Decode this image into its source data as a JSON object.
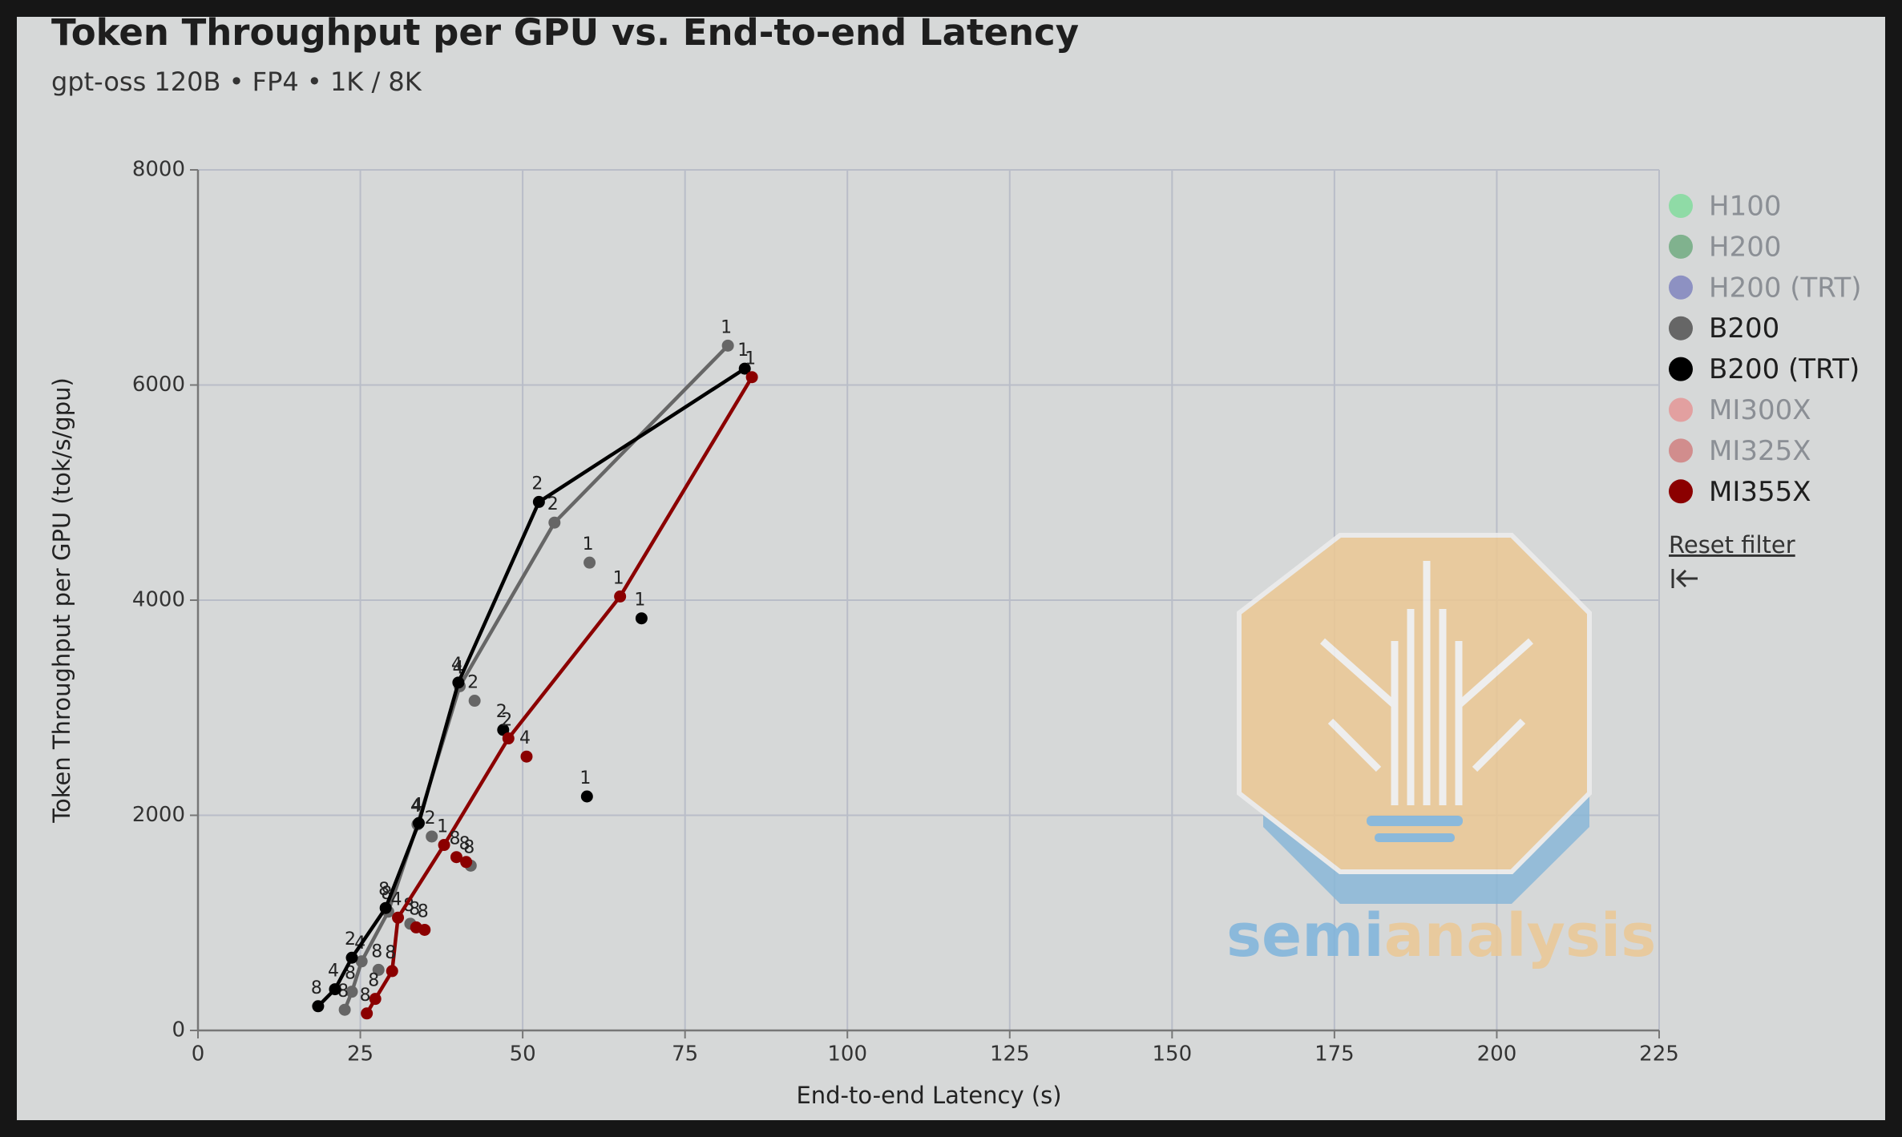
{
  "chart_data": {
    "type": "scatter",
    "title": "Token Throughput per GPU vs. End-to-end Latency",
    "subtitle": "gpt-oss 120B • FP4 • 1K / 8K",
    "x_label": "End-to-end Latency (s)",
    "y_label": "Token Throughput per GPU (tok/s/gpu)",
    "xlim": [
      0,
      225
    ],
    "xticks": [
      0,
      25,
      50,
      75,
      100,
      125,
      150,
      175,
      200,
      225
    ],
    "ylim": [
      0,
      8000
    ],
    "yticks": [
      0,
      2000,
      4000,
      6000,
      8000
    ],
    "grid": true,
    "legend": "right",
    "reset_label": "Reset filter",
    "watermark": {
      "part1": "semi",
      "part2": "analysis"
    },
    "series": [
      {
        "name": "H100",
        "color": "#7ddc9a",
        "visible": false,
        "x": [],
        "values": [],
        "point_labels": [],
        "frontier": []
      },
      {
        "name": "H200",
        "color": "#6aa97c",
        "visible": false,
        "x": [],
        "values": [],
        "point_labels": [],
        "frontier": []
      },
      {
        "name": "H200 (TRT)",
        "color": "#7b80bd",
        "visible": false,
        "x": [],
        "values": [],
        "point_labels": [],
        "frontier": []
      },
      {
        "name": "B200",
        "color": "#666666",
        "visible": true,
        "x": [
          81.6,
          54.9,
          60.3,
          40.3,
          42.6,
          33.8,
          36.0,
          42.0,
          29.3,
          32.7,
          25.2,
          27.8,
          23.7,
          22.6
        ],
        "values": [
          6366,
          4721,
          4349,
          3200,
          3065,
          1915,
          1803,
          1532,
          1104,
          992,
          642,
          563,
          360,
          192
        ],
        "point_labels": [
          "1",
          "2",
          "1",
          "4",
          "2",
          "4",
          "2",
          "8",
          "8",
          "8",
          "4",
          "8",
          "8",
          "8"
        ],
        "frontier": [
          0,
          1,
          3,
          5,
          8,
          10,
          12,
          13
        ]
      },
      {
        "name": "B200 (TRT)",
        "color": "#000000",
        "visible": true,
        "x": [
          84.2,
          52.5,
          68.3,
          40.1,
          47.0,
          59.9,
          34.0,
          28.9,
          23.7,
          21.1,
          18.5
        ],
        "values": [
          6152,
          4913,
          3831,
          3234,
          2794,
          2175,
          1927,
          1138,
          676,
          383,
          225
        ],
        "point_labels": [
          "1",
          "2",
          "1",
          "4",
          "2",
          "1",
          "4",
          "8",
          "2",
          "4",
          "8"
        ],
        "frontier": [
          0,
          1,
          3,
          6,
          7,
          8,
          9,
          10
        ]
      },
      {
        "name": "MI300X",
        "color": "#e59292",
        "visible": false,
        "x": [],
        "values": [],
        "point_labels": [],
        "frontier": []
      },
      {
        "name": "MI325X",
        "color": "#cf7a7a",
        "visible": false,
        "x": [],
        "values": [],
        "point_labels": [],
        "frontier": []
      },
      {
        "name": "MI355X",
        "color": "#8b0000",
        "visible": true,
        "x": [
          85.3,
          65.0,
          47.8,
          50.6,
          37.9,
          39.8,
          41.3,
          30.8,
          33.6,
          34.9,
          29.9,
          27.3,
          26.0
        ],
        "values": [
          6073,
          4034,
          2715,
          2546,
          1724,
          1611,
          1566,
          1048,
          958,
          935,
          552,
          293,
          158
        ],
        "point_labels": [
          "1",
          "1",
          "2",
          "4",
          "1",
          "8",
          "8",
          "4",
          "8",
          "8",
          "8",
          "8",
          "8"
        ],
        "frontier": [
          0,
          1,
          2,
          4,
          7,
          10,
          11,
          12
        ]
      }
    ]
  }
}
